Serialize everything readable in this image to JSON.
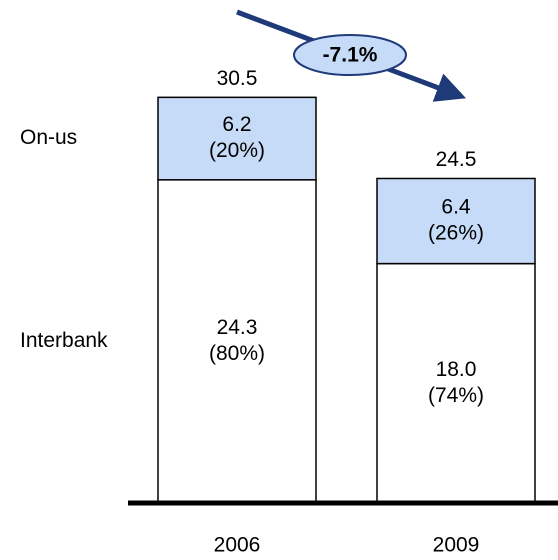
{
  "chart_data": {
    "type": "stacked_bar",
    "categories": [
      "2006",
      "2009"
    ],
    "series": [
      {
        "name": "Interbank",
        "color": "#ffffff",
        "values": [
          24.3,
          18.0
        ],
        "value_labels": [
          [
            "24.3",
            "(80%)"
          ],
          [
            "18.0",
            "(74%)"
          ]
        ]
      },
      {
        "name": "On-us",
        "color": "#c6dbf7",
        "values": [
          6.2,
          6.4
        ],
        "value_labels": [
          [
            "6.2",
            "(20%)"
          ],
          [
            "6.4",
            "(26%)"
          ]
        ]
      }
    ],
    "totals": [
      30.5,
      24.5
    ],
    "annotation": "-7.1%",
    "ylim": [
      0,
      35
    ]
  }
}
